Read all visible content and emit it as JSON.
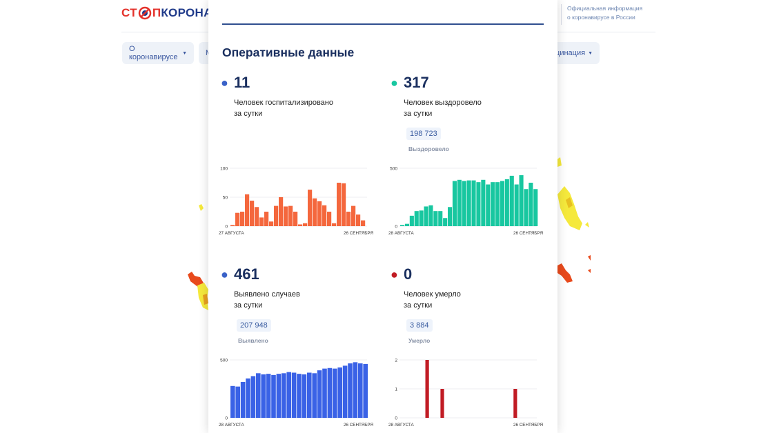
{
  "header": {
    "logo_part1": "СТ",
    "logo_part2": "П",
    "logo_part3": "КОРОНАВ",
    "official_line1": "Официальная информация",
    "official_line2": "о коронавирусе в России"
  },
  "nav": {
    "item1": "О коронавирусе",
    "item2": "М",
    "item3": "кцинация"
  },
  "colors": {
    "hospitalized": "#f4673d",
    "recovered": "#18c7a0",
    "cases": "#3a62e6",
    "deaths": "#c11c24",
    "dot_blue": "#3a62c8",
    "dot_teal": "#18c7a0",
    "dot_red": "#c11c24"
  },
  "modal": {
    "title": "Оперативные данные",
    "stats": {
      "hospitalized": {
        "value": "11",
        "label_line1": "Человек госпитализировано",
        "label_line2": "за сутки"
      },
      "recovered": {
        "value": "317",
        "label_line1": "Человек выздоровело",
        "label_line2": "за сутки",
        "total": "198 723",
        "total_label": "Выздоровело"
      },
      "cases": {
        "value": "461",
        "label_line1": "Выявлено случаев",
        "label_line2": "за сутки",
        "total": "207 948",
        "total_label": "Выявлено"
      },
      "deaths": {
        "value": "0",
        "label_line1": "Человек умерло",
        "label_line2": "за сутки",
        "total": "3 884",
        "total_label": "Умерло"
      }
    }
  },
  "chart_data": [
    {
      "type": "bar",
      "series_key": "hospitalized",
      "ylim": [
        0,
        100
      ],
      "yticks": [
        "0",
        "50",
        "100"
      ],
      "x_start": "27 АВГУСТА",
      "x_end": "26 СЕНТЯБРЯ",
      "values": [
        2,
        23,
        25,
        55,
        44,
        33,
        15,
        25,
        8,
        35,
        50,
        34,
        35,
        25,
        3,
        5,
        63,
        48,
        43,
        36,
        25,
        5,
        75,
        74,
        25,
        35,
        20,
        10
      ]
    },
    {
      "type": "bar",
      "series_key": "recovered",
      "ylim": [
        0,
        500
      ],
      "yticks": [
        "0",
        "500"
      ],
      "x_start": "28 АВГУСТА",
      "x_end": "26 СЕНТЯБРЯ",
      "values": [
        10,
        20,
        90,
        130,
        135,
        170,
        180,
        130,
        130,
        70,
        165,
        390,
        400,
        390,
        395,
        395,
        380,
        400,
        360,
        380,
        380,
        390,
        405,
        435,
        360,
        440,
        320,
        375,
        320
      ]
    },
    {
      "type": "bar",
      "series_key": "cases",
      "ylim": [
        0,
        500
      ],
      "yticks": [
        "0",
        "500"
      ],
      "x_start": "28 АВГУСТА",
      "x_end": "26 СЕНТЯБРЯ",
      "values": [
        275,
        270,
        310,
        340,
        360,
        385,
        375,
        380,
        370,
        380,
        385,
        395,
        390,
        380,
        375,
        390,
        385,
        410,
        425,
        430,
        425,
        435,
        450,
        470,
        480,
        470,
        465
      ]
    },
    {
      "type": "bar",
      "series_key": "deaths",
      "ylim": [
        0,
        2
      ],
      "yticks": [
        "0",
        "1",
        "2"
      ],
      "x_start": "28 АВГУСТА",
      "x_end": "26 СЕНТЯБРЯ",
      "values": [
        0,
        0,
        0,
        0,
        0,
        0,
        0,
        0,
        0,
        0,
        2,
        0,
        0,
        0,
        0,
        0,
        1,
        0,
        0,
        0,
        0,
        0,
        0,
        0,
        0,
        0,
        0,
        0,
        0,
        0,
        0,
        0,
        0,
        0,
        0,
        0,
        0,
        0,
        0,
        0,
        0,
        0,
        0,
        0,
        0,
        1,
        0,
        0,
        0,
        0,
        0,
        0,
        0
      ]
    }
  ]
}
